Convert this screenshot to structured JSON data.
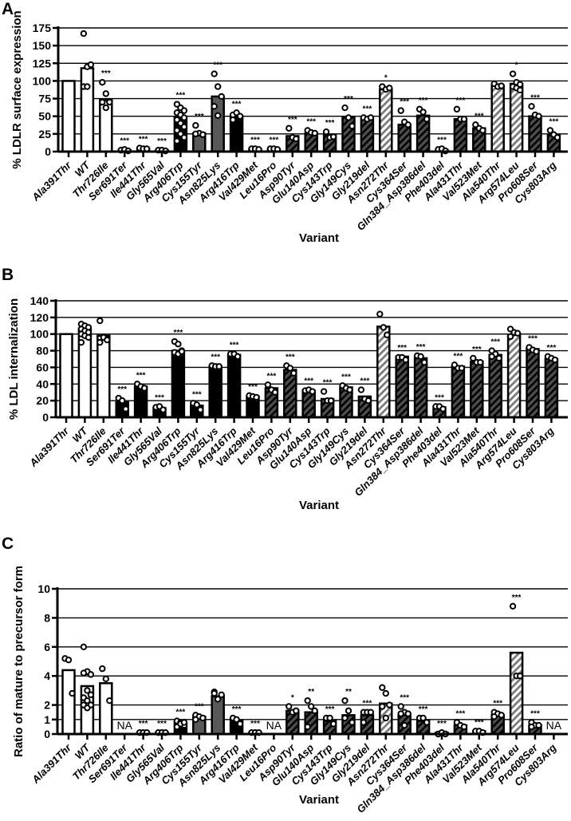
{
  "chart_data": [
    {
      "panel": "A",
      "type": "bar",
      "title": "",
      "xlabel": "Variant",
      "ylabel": "% LDLR surface expression",
      "ylim": [
        0,
        175
      ],
      "yticks": [
        0,
        25,
        50,
        75,
        100,
        125,
        150,
        175
      ],
      "grid": true,
      "categories": [
        "Ala391Thr",
        "WT",
        "Thr726Ile",
        "Ser691Ter",
        "Ile441Thr",
        "Gly565Val",
        "Arg406Trp",
        "Cys155Tyr",
        "Asn825Lys",
        "Arg416Trp",
        "Val429Met",
        "Leu16Pro",
        "Asp90Tyr",
        "Glu140Asp",
        "Cys143Trp",
        "Gly149Cys",
        "Gly219del",
        "Asn272Thr",
        "Cys364Ser",
        "Gln384_Asp386del",
        "Phe403del",
        "Ala431Thr",
        "Val523Met",
        "Ala540Thr",
        "Arg574Leu",
        "Pro608Ser",
        "Cys803Arg"
      ],
      "values": [
        100,
        118,
        73,
        2,
        4,
        2,
        49,
        26,
        78,
        50,
        3,
        3,
        22,
        26,
        23,
        48,
        46,
        88,
        38,
        51,
        2,
        46,
        33,
        93,
        96,
        50,
        24
      ],
      "points": [
        [],
        [
          167,
          120,
          123,
          92,
          92
        ],
        [
          98,
          82,
          71,
          70,
          62,
          70
        ],
        [
          2,
          3,
          1
        ],
        [
          5,
          4,
          4
        ],
        [
          2,
          2,
          1
        ],
        [
          67,
          62,
          58,
          55,
          52,
          48,
          45,
          40,
          35,
          30,
          25,
          20,
          15
        ],
        [
          37,
          26,
          24,
          25
        ],
        [
          110,
          92,
          78,
          64,
          51
        ],
        [
          52,
          55,
          50,
          45
        ],
        [
          4,
          4,
          3
        ],
        [
          4,
          4,
          3
        ],
        [
          33,
          20,
          18
        ],
        [
          30,
          27,
          26
        ],
        [
          28,
          20,
          21
        ],
        [
          62,
          48,
          36
        ],
        [
          48,
          46,
          48
        ],
        [
          92,
          88,
          90
        ],
        [
          58,
          42,
          38
        ],
        [
          60,
          56,
          46
        ],
        [
          3,
          4,
          1
        ],
        [
          60,
          46,
          46
        ],
        [
          38,
          33,
          30
        ],
        [
          96,
          92,
          93
        ],
        [
          110,
          98,
          95,
          92,
          90,
          87
        ],
        [
          64,
          52,
          50
        ],
        [
          30,
          24,
          20
        ]
      ],
      "bar_style": [
        "white",
        "white",
        "white",
        "black",
        "black",
        "black",
        "black",
        "gray",
        "gray",
        "black",
        "black",
        "black",
        "hatch-dark",
        "hatch-dark",
        "hatch-dark",
        "hatch-dark",
        "hatch-dark",
        "hatch-light",
        "hatch-dark",
        "hatch-dark",
        "hatch-dark",
        "hatch-dark",
        "hatch-dark",
        "hatch-light",
        "hatch-light",
        "hatch-dark",
        "hatch-dark"
      ],
      "annotations": [
        "",
        "",
        "***",
        "***",
        "***",
        "***",
        "***",
        "***",
        "***",
        "***",
        "***",
        "***",
        "***",
        "***",
        "***",
        "***",
        "***",
        "*",
        "***",
        "***",
        "***",
        "***",
        "***",
        "",
        "*",
        "***",
        "***"
      ]
    },
    {
      "panel": "B",
      "type": "bar",
      "title": "",
      "xlabel": "Variant",
      "ylabel": "% LDL internalization",
      "ylim": [
        0,
        140
      ],
      "yticks": [
        0,
        20,
        40,
        60,
        80,
        100,
        120,
        140
      ],
      "grid": true,
      "categories": [
        "Ala391Thr",
        "WT",
        "Thr726Ile",
        "Ser691Ter",
        "Ile441Thr",
        "Gly565Val",
        "Arg406Trp",
        "Cys155Tyr",
        "Asn825Lys",
        "Arg416Trp",
        "Val429Met",
        "Leu16Pro",
        "Asp90Tyr",
        "Glu140Asp",
        "Cys143Trp",
        "Gly149Cys",
        "Gly219del",
        "Asn272Thr",
        "Cys364Ser",
        "Gln384_Asp386del",
        "Phe403del",
        "Ala431Thr",
        "Val523Met",
        "Ala540Thr",
        "Arg574Leu",
        "Pro608Ser",
        "Cys803Arg"
      ],
      "values": [
        100,
        106,
        98,
        18,
        37,
        11,
        80,
        14,
        61,
        75,
        25,
        35,
        57,
        32,
        22,
        36,
        25,
        109,
        73,
        71,
        12,
        61,
        67,
        75,
        99,
        82,
        70
      ],
      "points": [
        [],
        [
          112,
          110,
          108,
          106,
          104,
          102,
          100,
          98,
          96,
          90
        ],
        [
          116,
          96,
          93,
          90
        ],
        [
          23,
          20,
          10
        ],
        [
          40,
          37,
          35
        ],
        [
          12,
          13,
          9
        ],
        [
          91,
          88,
          80,
          78,
          76,
          79
        ],
        [
          17,
          15,
          9
        ],
        [
          62,
          61,
          61
        ],
        [
          76,
          76,
          73
        ],
        [
          26,
          25,
          24
        ],
        [
          39,
          33,
          30
        ],
        [
          62,
          59,
          53
        ],
        [
          32,
          33,
          31
        ],
        [
          31,
          20,
          20
        ],
        [
          38,
          35,
          33
        ],
        [
          33,
          22,
          20
        ],
        [
          124,
          108,
          99
        ],
        [
          72,
          72,
          69
        ],
        [
          74,
          73,
          66
        ],
        [
          13,
          13,
          10
        ],
        [
          63,
          59,
          59
        ],
        [
          71,
          66,
          66
        ],
        [
          80,
          76,
          71,
          73
        ],
        [
          106,
          102,
          101,
          97
        ],
        [
          84,
          81,
          79
        ],
        [
          73,
          71,
          69
        ]
      ],
      "bar_style": [
        "white",
        "white",
        "white",
        "black",
        "black",
        "black",
        "black",
        "black",
        "black",
        "black",
        "black",
        "hatch-dark",
        "hatch-dark",
        "hatch-dark",
        "hatch-dark",
        "hatch-dark",
        "hatch-dark",
        "hatch-light",
        "hatch-dark",
        "hatch-dark",
        "hatch-dark",
        "hatch-dark",
        "hatch-dark",
        "hatch-dark",
        "hatch-light",
        "hatch-dark",
        "hatch-dark"
      ],
      "annotations": [
        "",
        "",
        "",
        "***",
        "***",
        "***",
        "***",
        "***",
        "***",
        "***",
        "***",
        "***",
        "***",
        "***",
        "***",
        "***",
        "***",
        "",
        "***",
        "***",
        "***",
        "***",
        "***",
        "***",
        "",
        "***",
        "***"
      ]
    },
    {
      "panel": "C",
      "type": "bar",
      "title": "",
      "xlabel": "Variant",
      "ylabel": "Ratio of mature to precursor form",
      "ylim": [
        0,
        10
      ],
      "yticks": [
        0,
        1,
        2,
        4,
        6,
        8,
        10
      ],
      "grid": true,
      "categories": [
        "Ala391Thr",
        "WT",
        "Thr726Ile",
        "Ser691Ter",
        "Ile441Thr",
        "Gly565Val",
        "Arg406Trp",
        "Cys155Tyr",
        "Asn825Lys",
        "Arg416Trp",
        "Val429Met",
        "Leu16Pro",
        "Asp90Tyr",
        "Glu140Asp",
        "Cys143Trp",
        "Gly149Cys",
        "Gly219del",
        "Asn272Thr",
        "Cys364Ser",
        "Gln384_Asp386del",
        "Phe403del",
        "Ala431Thr",
        "Val523Met",
        "Ala540Thr",
        "Arg574Leu",
        "Pro608Ser",
        "Cys803Arg"
      ],
      "values": [
        4.4,
        3.3,
        3.5,
        null,
        0.1,
        0.1,
        0.8,
        1.2,
        2.6,
        0.9,
        0.1,
        null,
        1.6,
        1.5,
        0.9,
        1.3,
        1.3,
        2.1,
        1.3,
        0.9,
        0.1,
        0.6,
        0.2,
        1.3,
        5.6,
        0.6,
        null
      ],
      "points": [
        [
          5.2,
          5.1,
          2.8
        ],
        [
          6.0,
          4.3,
          4.1,
          4.2,
          3.0,
          2.7,
          2.5,
          2.3,
          2.0,
          2.0,
          1.8
        ],
        [
          4.5,
          3.8,
          2.3
        ],
        [],
        [
          0.1,
          0.1,
          0.1
        ],
        [
          0.1,
          0.1,
          0.1
        ],
        [
          0.9,
          0.8,
          0.6,
          0.5,
          0.7,
          0.8
        ],
        [
          1.3,
          1.2,
          1.1,
          1.0
        ],
        [
          2.9,
          2.4,
          2.7,
          2.8
        ],
        [
          1.1,
          1.0,
          0.7
        ],
        [
          0.1,
          0.1,
          0.1
        ],
        [],
        [
          1.9,
          1.5,
          1.6
        ],
        [
          2.3,
          1.9,
          1.6,
          0.5
        ],
        [
          1.1,
          1.1,
          0.7
        ],
        [
          2.3,
          1.6,
          0.8,
          1.1
        ],
        [
          1.5,
          1.5,
          1.5,
          0.8
        ],
        [
          3.2,
          2.8,
          2.0,
          1.9,
          1.1
        ],
        [
          1.9,
          1.5,
          1.4,
          1.4,
          0.6
        ],
        [
          1.1,
          1.1,
          0.8
        ],
        [
          0.0,
          0.1,
          0.0
        ],
        [
          0.8,
          0.6,
          0.5
        ],
        [
          0.2,
          0.2,
          0.1
        ],
        [
          1.5,
          1.4,
          1.3,
          1.2
        ],
        [
          8.8,
          4.0,
          4.0
        ],
        [
          0.8,
          0.6,
          0.6,
          0.5
        ],
        []
      ],
      "bar_style": [
        "white",
        "white",
        "white",
        "black",
        "black",
        "black",
        "black",
        "gray",
        "gray",
        "black",
        "black",
        "black",
        "hatch-dark",
        "hatch-dark",
        "hatch-dark",
        "hatch-dark",
        "hatch-dark",
        "hatch-light",
        "hatch-dark",
        "hatch-dark",
        "hatch-dark",
        "hatch-dark",
        "hatch-dark",
        "hatch-dark",
        "hatch-light",
        "hatch-dark",
        "hatch-dark"
      ],
      "annotations": [
        "",
        "",
        "",
        "NA",
        "***",
        "***",
        "***",
        "***",
        "",
        "***",
        "***",
        "NA",
        "*",
        "**",
        "***",
        "**",
        "***",
        "",
        "***",
        "***",
        "***",
        "***",
        "***",
        "***",
        "***",
        "***",
        "NA"
      ]
    }
  ],
  "colors": {
    "white": "#ffffff",
    "black": "#000000",
    "gray": "#595959",
    "hatch_dark_bg": "#4d4d4d",
    "hatch_light_bg": "#ffffff",
    "hatch_stripe_dark": "#000000",
    "hatch_stripe_light": "#7a7a7a",
    "grid": "#000000"
  }
}
